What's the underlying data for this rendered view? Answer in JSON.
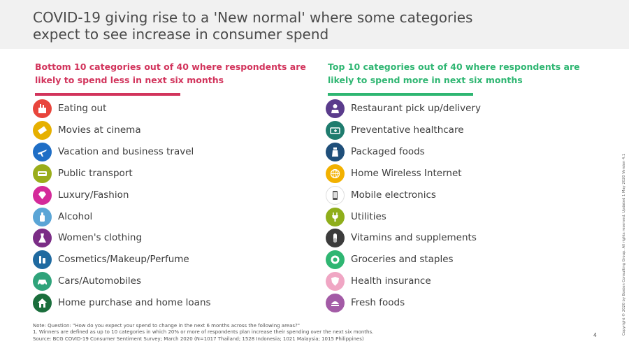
{
  "title": "COVID-19 giving rise to a 'New normal' where some categories expect to see increase in consumer spend",
  "left": {
    "heading": "Bottom 10 categories out of 40 where respondents are likely to spend less in next six months",
    "accent": "#d2345c",
    "items": [
      {
        "label": "Eating out",
        "icon": "eating-out-icon",
        "color": "#e8453c"
      },
      {
        "label": "Movies at cinema",
        "icon": "ticket-icon",
        "color": "#e6b000"
      },
      {
        "label": "Vacation and business travel",
        "icon": "airplane-icon",
        "color": "#1f6ec6"
      },
      {
        "label": "Public transport",
        "icon": "bus-icon",
        "color": "#9aad1a"
      },
      {
        "label": "Luxury/Fashion",
        "icon": "diamond-icon",
        "color": "#d42a9a"
      },
      {
        "label": "Alcohol",
        "icon": "bottle-icon",
        "color": "#5aa5d6"
      },
      {
        "label": "Women's clothing",
        "icon": "dress-icon",
        "color": "#7b2d86"
      },
      {
        "label": "Cosmetics/Makeup/Perfume",
        "icon": "cosmetics-icon",
        "color": "#1f6aa0"
      },
      {
        "label": "Cars/Automobiles",
        "icon": "car-icon",
        "color": "#2fa37a"
      },
      {
        "label": "Home purchase and home loans",
        "icon": "house-icon",
        "color": "#1a6e3c"
      }
    ]
  },
  "right": {
    "heading": "Top 10 categories out of 40 where respondents are likely to spend more in next six months",
    "accent": "#2fb672",
    "items": [
      {
        "label": "Restaurant pick up/delivery",
        "icon": "delivery-person-icon",
        "color": "#5a3c8c"
      },
      {
        "label": "Preventative healthcare",
        "icon": "ambulance-icon",
        "color": "#1f7c6e"
      },
      {
        "label": "Packaged foods",
        "icon": "packaged-food-icon",
        "color": "#1f4f7a"
      },
      {
        "label": "Home Wireless Internet",
        "icon": "globe-icon",
        "color": "#f2b100"
      },
      {
        "label": "Mobile electronics",
        "icon": "mobile-phone-icon",
        "color": "#ffffff"
      },
      {
        "label": "Utilities",
        "icon": "plug-icon",
        "color": "#8fae1b"
      },
      {
        "label": "Vitamins and supplements",
        "icon": "capsule-icon",
        "color": "#3c3c3c"
      },
      {
        "label": "Groceries and staples",
        "icon": "grocery-icon",
        "color": "#2fb672"
      },
      {
        "label": "Health insurance",
        "icon": "shield-icon",
        "color": "#f0a6c4"
      },
      {
        "label": "Fresh foods",
        "icon": "fresh-food-icon",
        "color": "#a35ba6"
      }
    ]
  },
  "notes": {
    "line1": "Note: Question: \"How do you expect your spend to change in the next 6 months across the following areas?\"",
    "line2": "1. Winners are defined as up to 10 categories in which 20% or more of respondents plan increase their spending over the next six months.",
    "line3": "Source: BCG COVID-19 Consumer Sentiment Survey; March 2020 (N=1017 Thailand; 1528 Indonesia; 1021 Malaysia; 1015 Philippines)"
  },
  "page_number": "4",
  "copyright": "Copyright © 2020 by Boston Consulting Group. All rights reserved. Updated 1 May 2020 Version 4.1"
}
